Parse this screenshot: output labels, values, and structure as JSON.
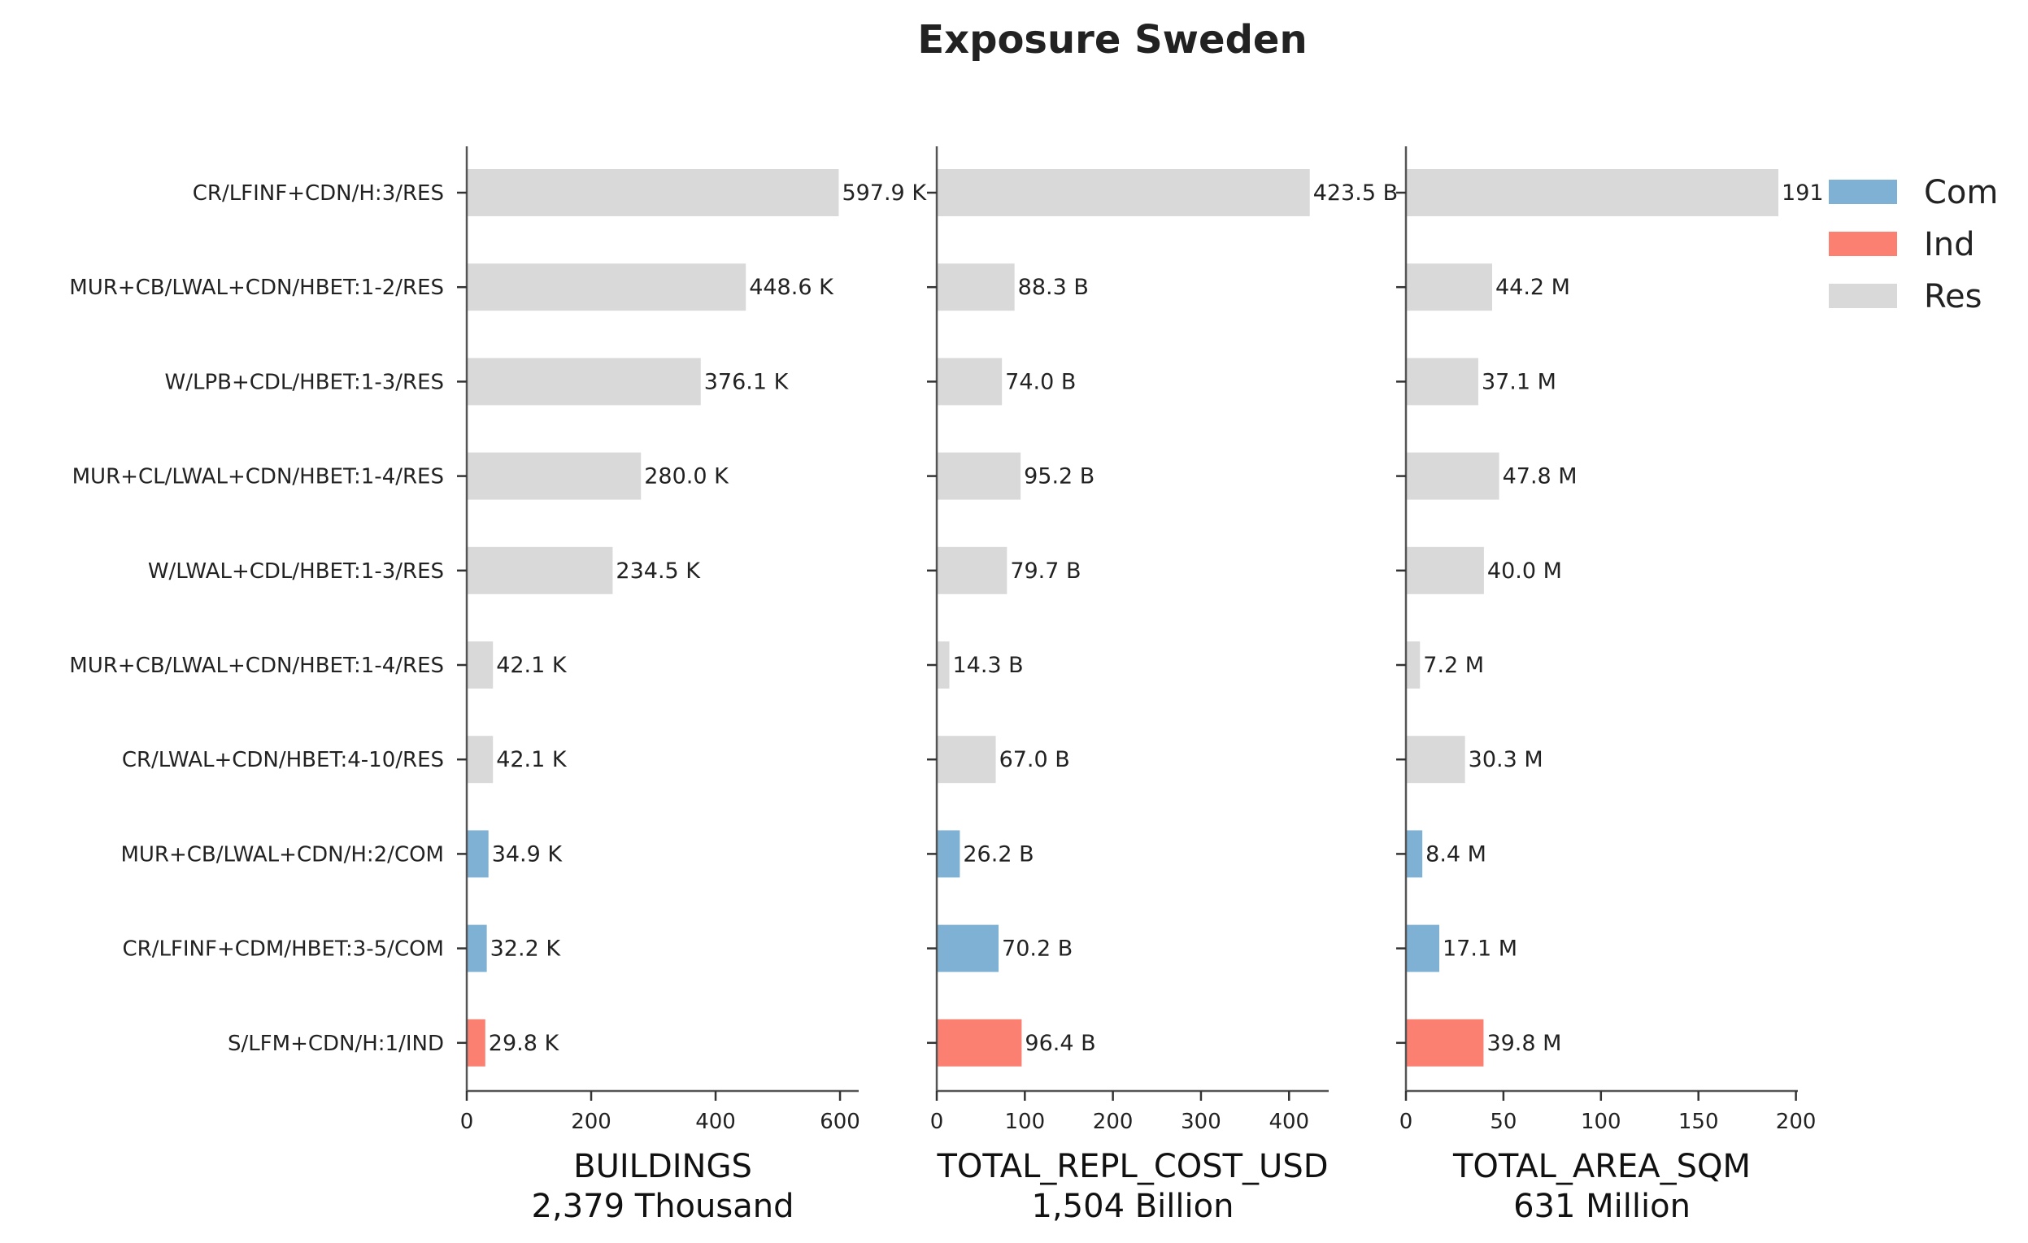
{
  "chart_data": {
    "type": "bar",
    "orientation": "horizontal",
    "title": "Exposure Sweden",
    "categories": [
      "CR/LFINF+CDN/H:3/RES",
      "MUR+CB/LWAL+CDN/HBET:1-2/RES",
      "W/LPB+CDL/HBET:1-3/RES",
      "MUR+CL/LWAL+CDN/HBET:1-4/RES",
      "W/LWAL+CDL/HBET:1-3/RES",
      "MUR+CB/LWAL+CDN/HBET:1-4/RES",
      "CR/LWAL+CDN/HBET:4-10/RES",
      "MUR+CB/LWAL+CDN/H:2/COM",
      "CR/LFINF+CDM/HBET:3-5/COM",
      "S/LFM+CDN/H:1/IND"
    ],
    "occupancy": [
      "Res",
      "Res",
      "Res",
      "Res",
      "Res",
      "Res",
      "Res",
      "Com",
      "Com",
      "Ind"
    ],
    "colors": {
      "Com": "#7fb1d5",
      "Ind": "#fc8072",
      "Res": "#d9d9d9"
    },
    "legend": {
      "placement": "top-right",
      "entries": [
        "Com",
        "Ind",
        "Res"
      ]
    },
    "panels": [
      {
        "xlabel": "BUILDINGS",
        "total": "2,379 Thousand",
        "xlim": [
          0,
          630
        ],
        "xticks": [
          0,
          200,
          400,
          600
        ],
        "values": [
          597.9,
          448.6,
          376.1,
          280.0,
          234.5,
          42.1,
          42.1,
          34.9,
          32.2,
          29.8
        ],
        "labels": [
          "597.9 K",
          "448.6 K",
          "376.1 K",
          "280.0 K",
          "234.5 K",
          "42.1 K",
          "42.1 K",
          "34.9 K",
          "32.2 K",
          "29.8 K"
        ]
      },
      {
        "xlabel": "TOTAL_REPL_COST_USD",
        "total": "1,504 Billion",
        "xlim": [
          0,
          445
        ],
        "xticks": [
          0,
          100,
          200,
          300,
          400
        ],
        "values": [
          423.5,
          88.3,
          74.0,
          95.2,
          79.7,
          14.3,
          67.0,
          26.2,
          70.2,
          96.4
        ],
        "labels": [
          "423.5 B",
          "88.3 B",
          "74.0 B",
          "95.2 B",
          "79.7 B",
          "14.3 B",
          "67.0 B",
          "26.2 B",
          "70.2 B",
          "96.4 B"
        ]
      },
      {
        "xlabel": "TOTAL_AREA_SQM",
        "total": "631 Million",
        "xlim": [
          0,
          201
        ],
        "xticks": [
          0,
          50,
          100,
          150,
          200
        ],
        "values": [
          191,
          44.2,
          37.1,
          47.8,
          40.0,
          7.2,
          30.3,
          8.4,
          17.1,
          39.8
        ],
        "labels": [
          "191",
          "44.2 M",
          "37.1 M",
          "47.8 M",
          "40.0 M",
          "7.2 M",
          "30.3 M",
          "8.4 M",
          "17.1 M",
          "39.8 M"
        ]
      }
    ],
    "grid": false
  }
}
